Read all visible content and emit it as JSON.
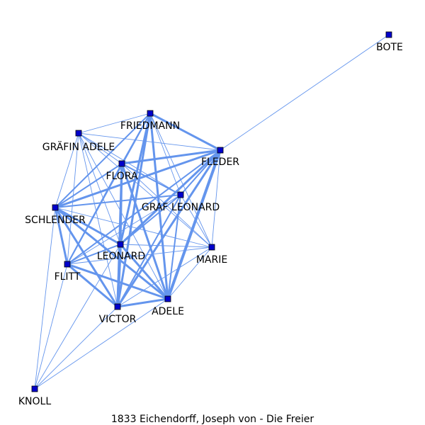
{
  "caption": "1833  Eichendorff,  Joseph  von  -  Die  Freier",
  "colors": {
    "edge": "#6495ED",
    "node_fill": "#0000CC",
    "node_stroke": "#000000"
  },
  "nodes": [
    {
      "id": "bote",
      "label": "BOTE"
    },
    {
      "id": "friedmann",
      "label": "FRIEDMANN"
    },
    {
      "id": "graefin_adele",
      "label": "GRÄFIN ADELE"
    },
    {
      "id": "fleder",
      "label": "FLEDER"
    },
    {
      "id": "flora",
      "label": "FLORA"
    },
    {
      "id": "graf_leonard",
      "label": "GRAF LEONARD"
    },
    {
      "id": "schlender",
      "label": "SCHLENDER"
    },
    {
      "id": "leonard",
      "label": "LEONARD"
    },
    {
      "id": "marie",
      "label": "MARIE"
    },
    {
      "id": "flitt",
      "label": "FLITT"
    },
    {
      "id": "adele",
      "label": "ADELE"
    },
    {
      "id": "victor",
      "label": "VICTOR"
    },
    {
      "id": "knoll",
      "label": "KNOLL"
    }
  ],
  "edges": [
    {
      "source": "bote",
      "target": "fleder",
      "weight": 1
    },
    {
      "source": "friedmann",
      "target": "fleder",
      "weight": 3
    },
    {
      "source": "friedmann",
      "target": "flora",
      "weight": 2
    },
    {
      "source": "friedmann",
      "target": "graefin_adele",
      "weight": 1
    },
    {
      "source": "friedmann",
      "target": "graf_leonard",
      "weight": 1
    },
    {
      "source": "friedmann",
      "target": "schlender",
      "weight": 2
    },
    {
      "source": "friedmann",
      "target": "leonard",
      "weight": 3
    },
    {
      "source": "friedmann",
      "target": "adele",
      "weight": 3
    },
    {
      "source": "friedmann",
      "target": "victor",
      "weight": 3
    },
    {
      "source": "friedmann",
      "target": "marie",
      "weight": 1
    },
    {
      "source": "friedmann",
      "target": "flitt",
      "weight": 2
    },
    {
      "source": "graefin_adele",
      "target": "fleder",
      "weight": 1
    },
    {
      "source": "graefin_adele",
      "target": "flora",
      "weight": 1
    },
    {
      "source": "graefin_adele",
      "target": "schlender",
      "weight": 1
    },
    {
      "source": "graefin_adele",
      "target": "leonard",
      "weight": 1
    },
    {
      "source": "graefin_adele",
      "target": "adele",
      "weight": 1
    },
    {
      "source": "graefin_adele",
      "target": "victor",
      "weight": 1
    },
    {
      "source": "graefin_adele",
      "target": "flitt",
      "weight": 1
    },
    {
      "source": "graefin_adele",
      "target": "graf_leonard",
      "weight": 1
    },
    {
      "source": "graefin_adele",
      "target": "marie",
      "weight": 1
    },
    {
      "source": "fleder",
      "target": "flora",
      "weight": 3
    },
    {
      "source": "fleder",
      "target": "graf_leonard",
      "weight": 2
    },
    {
      "source": "fleder",
      "target": "schlender",
      "weight": 3
    },
    {
      "source": "fleder",
      "target": "leonard",
      "weight": 3
    },
    {
      "source": "fleder",
      "target": "marie",
      "weight": 1
    },
    {
      "source": "fleder",
      "target": "flitt",
      "weight": 2
    },
    {
      "source": "fleder",
      "target": "adele",
      "weight": 4
    },
    {
      "source": "fleder",
      "target": "victor",
      "weight": 3
    },
    {
      "source": "flora",
      "target": "graf_leonard",
      "weight": 2
    },
    {
      "source": "flora",
      "target": "schlender",
      "weight": 2
    },
    {
      "source": "flora",
      "target": "leonard",
      "weight": 3
    },
    {
      "source": "flora",
      "target": "marie",
      "weight": 1
    },
    {
      "source": "flora",
      "target": "flitt",
      "weight": 2
    },
    {
      "source": "flora",
      "target": "adele",
      "weight": 3
    },
    {
      "source": "flora",
      "target": "victor",
      "weight": 3
    },
    {
      "source": "graf_leonard",
      "target": "schlender",
      "weight": 2
    },
    {
      "source": "graf_leonard",
      "target": "leonard",
      "weight": 2
    },
    {
      "source": "graf_leonard",
      "target": "marie",
      "weight": 1
    },
    {
      "source": "graf_leonard",
      "target": "adele",
      "weight": 2
    },
    {
      "source": "graf_leonard",
      "target": "victor",
      "weight": 2
    },
    {
      "source": "graf_leonard",
      "target": "flitt",
      "weight": 1
    },
    {
      "source": "schlender",
      "target": "leonard",
      "weight": 3
    },
    {
      "source": "schlender",
      "target": "flitt",
      "weight": 3
    },
    {
      "source": "schlender",
      "target": "adele",
      "weight": 3
    },
    {
      "source": "schlender",
      "target": "victor",
      "weight": 3
    },
    {
      "source": "schlender",
      "target": "marie",
      "weight": 1
    },
    {
      "source": "schlender",
      "target": "knoll",
      "weight": 1
    },
    {
      "source": "leonard",
      "target": "marie",
      "weight": 1
    },
    {
      "source": "leonard",
      "target": "flitt",
      "weight": 2
    },
    {
      "source": "leonard",
      "target": "adele",
      "weight": 3
    },
    {
      "source": "leonard",
      "target": "victor",
      "weight": 4
    },
    {
      "source": "marie",
      "target": "flitt",
      "weight": 1
    },
    {
      "source": "marie",
      "target": "adele",
      "weight": 1
    },
    {
      "source": "marie",
      "target": "victor",
      "weight": 1
    },
    {
      "source": "flitt",
      "target": "adele",
      "weight": 3
    },
    {
      "source": "flitt",
      "target": "victor",
      "weight": 3
    },
    {
      "source": "flitt",
      "target": "knoll",
      "weight": 1
    },
    {
      "source": "adele",
      "target": "victor",
      "weight": 3
    },
    {
      "source": "adele",
      "target": "knoll",
      "weight": 1
    },
    {
      "source": "victor",
      "target": "knoll",
      "weight": 1
    },
    {
      "source": "leonard",
      "target": "knoll",
      "weight": 1
    }
  ]
}
